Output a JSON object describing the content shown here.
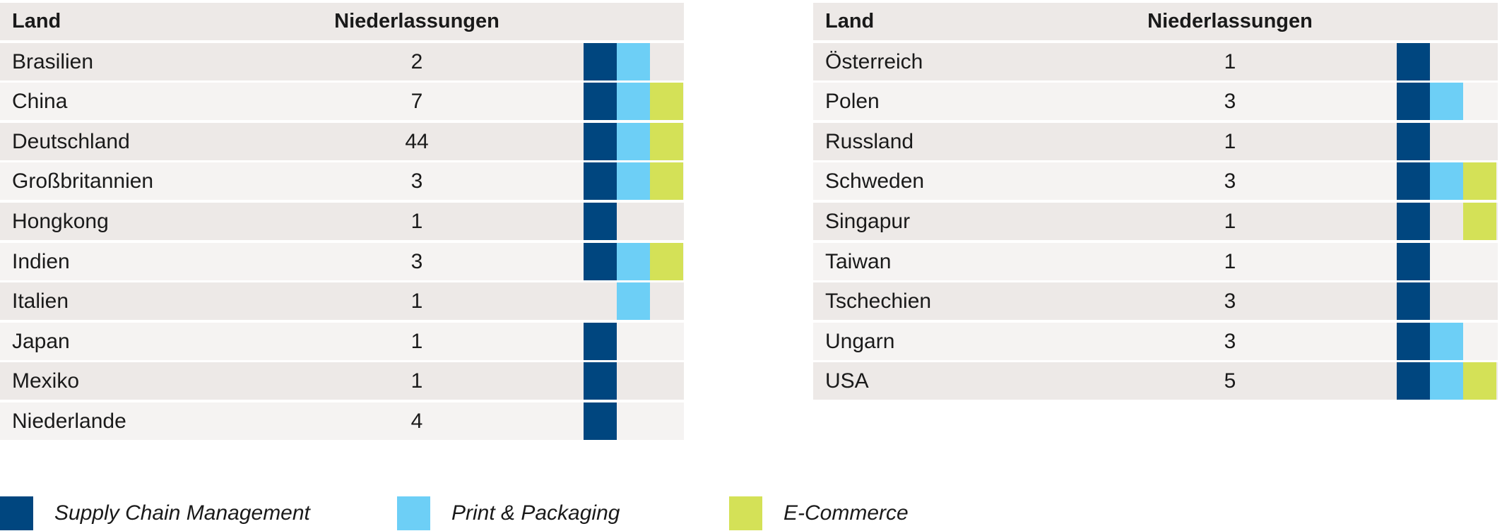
{
  "headers": {
    "land": "Land",
    "count": "Niederlassungen"
  },
  "legend": [
    {
      "key": "scm",
      "label": "Supply Chain Management",
      "color": "#00467f"
    },
    {
      "key": "pp",
      "label": "Print & Packaging",
      "color": "#6dcff6"
    },
    {
      "key": "ec",
      "label": "E-Commerce",
      "color": "#d4e157"
    }
  ],
  "chart_data": {
    "type": "table",
    "columns": [
      "Land",
      "Niederlassungen",
      "Supply Chain Management",
      "Print & Packaging",
      "E-Commerce"
    ],
    "tables": [
      {
        "rows": [
          {
            "land": "Brasilien",
            "count": "2",
            "scm": true,
            "pp": true,
            "ec": false
          },
          {
            "land": "China",
            "count": "7",
            "scm": true,
            "pp": true,
            "ec": true
          },
          {
            "land": "Deutschland",
            "count": "44",
            "scm": true,
            "pp": true,
            "ec": true
          },
          {
            "land": "Großbritannien",
            "count": "3",
            "scm": true,
            "pp": true,
            "ec": true
          },
          {
            "land": "Hongkong",
            "count": "1",
            "scm": true,
            "pp": false,
            "ec": false
          },
          {
            "land": "Indien",
            "count": "3",
            "scm": true,
            "pp": true,
            "ec": true
          },
          {
            "land": "Italien",
            "count": "1",
            "scm": false,
            "pp": true,
            "ec": false
          },
          {
            "land": "Japan",
            "count": "1",
            "scm": true,
            "pp": false,
            "ec": false
          },
          {
            "land": "Mexiko",
            "count": "1",
            "scm": true,
            "pp": false,
            "ec": false
          },
          {
            "land": "Niederlande",
            "count": "4",
            "scm": true,
            "pp": false,
            "ec": false
          }
        ]
      },
      {
        "rows": [
          {
            "land": "Österreich",
            "count": "1",
            "scm": true,
            "pp": false,
            "ec": false
          },
          {
            "land": "Polen",
            "count": "3",
            "scm": true,
            "pp": true,
            "ec": false
          },
          {
            "land": "Russland",
            "count": "1",
            "scm": true,
            "pp": false,
            "ec": false
          },
          {
            "land": "Schweden",
            "count": "3",
            "scm": true,
            "pp": true,
            "ec": true
          },
          {
            "land": "Singapur",
            "count": "1",
            "scm": true,
            "pp": false,
            "ec": true
          },
          {
            "land": "Taiwan",
            "count": "1",
            "scm": true,
            "pp": false,
            "ec": false
          },
          {
            "land": "Tschechien",
            "count": "3",
            "scm": true,
            "pp": false,
            "ec": false
          },
          {
            "land": "Ungarn",
            "count": "3",
            "scm": true,
            "pp": true,
            "ec": false
          },
          {
            "land": "USA",
            "count": "5",
            "scm": true,
            "pp": true,
            "ec": true
          }
        ]
      }
    ]
  }
}
